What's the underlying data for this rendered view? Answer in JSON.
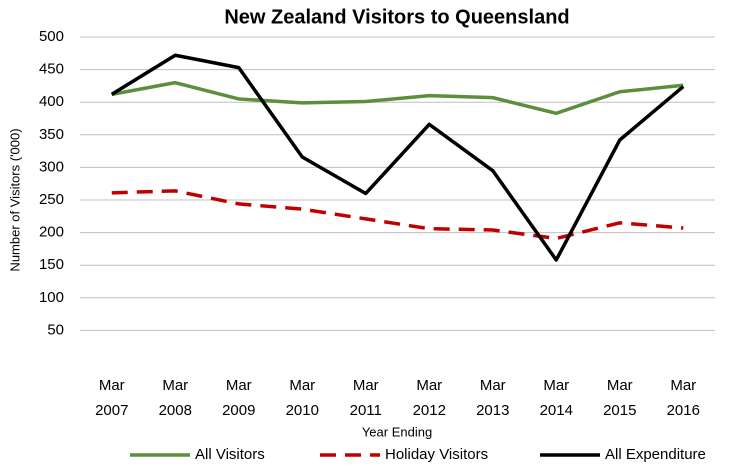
{
  "chart_data": {
    "type": "line",
    "title": "New Zealand Visitors to Queensland",
    "y_label": "Number of Visitors ('000)",
    "x_label": "Year Ending",
    "categories": [
      "Mar 2007",
      "Mar 2008",
      "Mar 2009",
      "Mar 2010",
      "Mar 2011",
      "Mar 2012",
      "Mar 2013",
      "Mar 2014",
      "Mar 2015",
      "Mar 2016"
    ],
    "series": [
      {
        "name": "All Visitors",
        "color": "#5b8f3b",
        "dash": false,
        "values": [
          412,
          430,
          405,
          399,
          401,
          410,
          407,
          383,
          416,
          426
        ]
      },
      {
        "name": "Holiday Visitors",
        "color": "#c00000",
        "dash": true,
        "values": [
          261,
          264,
          244,
          236,
          221,
          206,
          204,
          191,
          215,
          207
        ]
      },
      {
        "name": "All Expenditure",
        "color": "#000000",
        "dash": false,
        "values": [
          412,
          472,
          453,
          316,
          260,
          366,
          295,
          158,
          342,
          424
        ]
      }
    ],
    "ylim": [
      0,
      500
    ],
    "yticks": [
      50,
      100,
      150,
      200,
      250,
      300,
      350,
      400,
      450,
      500
    ],
    "grid": true,
    "legend": "bottom"
  }
}
